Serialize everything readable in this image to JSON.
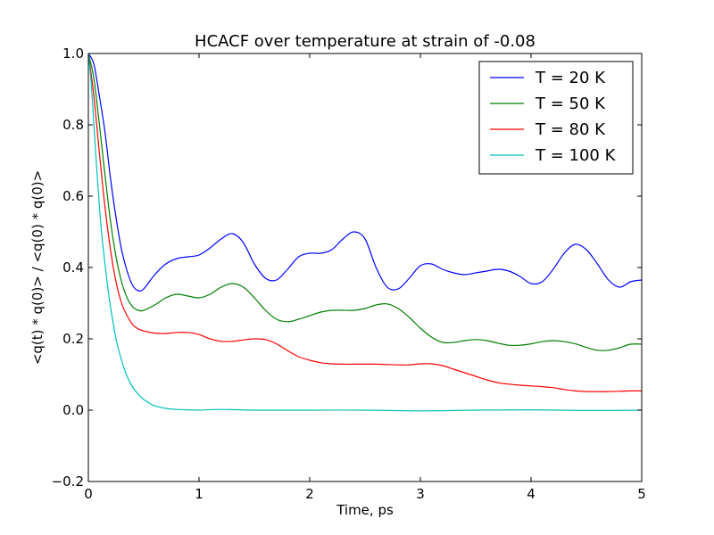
{
  "chart_data": {
    "type": "line",
    "title": "HCACF over temperature at strain of -0.08",
    "xlabel": "Time, ps",
    "ylabel": "<q(t) * q(0)> / <q(0) * q(0)>",
    "xlim": [
      0,
      5
    ],
    "ylim": [
      -0.2,
      1.0
    ],
    "xticks": [
      0,
      1,
      2,
      3,
      4,
      5
    ],
    "xtick_labels": [
      "0",
      "1",
      "2",
      "3",
      "4",
      "5"
    ],
    "yticks": [
      -0.2,
      0.0,
      0.2,
      0.4,
      0.6,
      0.8,
      1.0
    ],
    "ytick_labels": [
      "−0.2",
      "0.0",
      "0.2",
      "0.4",
      "0.6",
      "0.8",
      "1.0"
    ],
    "grid": false,
    "legend_position": "top-right",
    "series": [
      {
        "name": "T = 20 K",
        "color": "#0000ff",
        "x": [
          0,
          0.05,
          0.1,
          0.15,
          0.2,
          0.25,
          0.3,
          0.35,
          0.4,
          0.45,
          0.5,
          0.6,
          0.7,
          0.8,
          0.9,
          1.0,
          1.1,
          1.2,
          1.3,
          1.4,
          1.5,
          1.6,
          1.7,
          1.8,
          1.9,
          2.0,
          2.1,
          2.2,
          2.3,
          2.4,
          2.5,
          2.6,
          2.7,
          2.8,
          2.9,
          3.0,
          3.1,
          3.2,
          3.3,
          3.4,
          3.5,
          3.6,
          3.7,
          3.8,
          3.9,
          4.0,
          4.1,
          4.2,
          4.3,
          4.4,
          4.5,
          4.6,
          4.7,
          4.8,
          4.9,
          5.0
        ],
        "y": [
          1.0,
          0.97,
          0.88,
          0.78,
          0.65,
          0.54,
          0.45,
          0.39,
          0.35,
          0.335,
          0.34,
          0.38,
          0.41,
          0.425,
          0.43,
          0.435,
          0.455,
          0.48,
          0.495,
          0.47,
          0.41,
          0.37,
          0.365,
          0.395,
          0.43,
          0.44,
          0.44,
          0.45,
          0.48,
          0.5,
          0.48,
          0.4,
          0.345,
          0.34,
          0.37,
          0.405,
          0.41,
          0.395,
          0.385,
          0.38,
          0.385,
          0.39,
          0.395,
          0.39,
          0.375,
          0.355,
          0.36,
          0.395,
          0.44,
          0.465,
          0.45,
          0.41,
          0.365,
          0.345,
          0.36,
          0.365
        ]
      },
      {
        "name": "T = 50 K",
        "color": "#008000",
        "x": [
          0,
          0.05,
          0.1,
          0.15,
          0.2,
          0.25,
          0.3,
          0.35,
          0.4,
          0.45,
          0.5,
          0.6,
          0.7,
          0.8,
          0.9,
          1.0,
          1.1,
          1.2,
          1.3,
          1.4,
          1.5,
          1.6,
          1.7,
          1.8,
          1.9,
          2.0,
          2.1,
          2.2,
          2.3,
          2.4,
          2.5,
          2.6,
          2.7,
          2.8,
          2.9,
          3.0,
          3.1,
          3.2,
          3.3,
          3.4,
          3.5,
          3.6,
          3.7,
          3.8,
          3.9,
          4.0,
          4.1,
          4.2,
          4.3,
          4.4,
          4.5,
          4.6,
          4.7,
          4.8,
          4.9,
          5.0
        ],
        "y": [
          1.0,
          0.93,
          0.8,
          0.66,
          0.53,
          0.43,
          0.36,
          0.315,
          0.29,
          0.28,
          0.28,
          0.295,
          0.315,
          0.325,
          0.32,
          0.315,
          0.325,
          0.345,
          0.355,
          0.345,
          0.315,
          0.28,
          0.255,
          0.248,
          0.255,
          0.265,
          0.275,
          0.28,
          0.28,
          0.28,
          0.285,
          0.295,
          0.298,
          0.285,
          0.26,
          0.23,
          0.205,
          0.19,
          0.19,
          0.195,
          0.198,
          0.195,
          0.188,
          0.182,
          0.182,
          0.186,
          0.192,
          0.195,
          0.192,
          0.186,
          0.176,
          0.168,
          0.168,
          0.175,
          0.185,
          0.185
        ]
      },
      {
        "name": "T = 80 K",
        "color": "#ff0000",
        "x": [
          0,
          0.05,
          0.1,
          0.15,
          0.2,
          0.25,
          0.3,
          0.35,
          0.4,
          0.45,
          0.5,
          0.6,
          0.7,
          0.8,
          0.9,
          1.0,
          1.1,
          1.2,
          1.3,
          1.4,
          1.5,
          1.6,
          1.7,
          1.8,
          1.9,
          2.0,
          2.1,
          2.2,
          2.3,
          2.4,
          2.5,
          2.6,
          2.7,
          2.8,
          2.9,
          3.0,
          3.1,
          3.2,
          3.3,
          3.4,
          3.5,
          3.6,
          3.7,
          3.8,
          3.9,
          4.0,
          4.1,
          4.2,
          4.3,
          4.4,
          4.5,
          4.6,
          4.7,
          4.8,
          4.9,
          5.0
        ],
        "y": [
          1.0,
          0.88,
          0.72,
          0.57,
          0.45,
          0.36,
          0.3,
          0.265,
          0.24,
          0.228,
          0.222,
          0.216,
          0.215,
          0.218,
          0.218,
          0.212,
          0.2,
          0.193,
          0.193,
          0.197,
          0.2,
          0.198,
          0.186,
          0.167,
          0.15,
          0.14,
          0.133,
          0.13,
          0.129,
          0.129,
          0.129,
          0.129,
          0.128,
          0.127,
          0.127,
          0.13,
          0.13,
          0.125,
          0.115,
          0.105,
          0.095,
          0.085,
          0.077,
          0.073,
          0.07,
          0.068,
          0.066,
          0.063,
          0.058,
          0.054,
          0.052,
          0.052,
          0.052,
          0.053,
          0.054,
          0.054
        ]
      },
      {
        "name": "T = 100 K",
        "color": "#00bfbf",
        "x": [
          0,
          0.025,
          0.05,
          0.075,
          0.1,
          0.125,
          0.15,
          0.175,
          0.2,
          0.25,
          0.3,
          0.35,
          0.4,
          0.45,
          0.5,
          0.55,
          0.6,
          0.7,
          0.8,
          0.9,
          1.0,
          1.2,
          1.5,
          2.0,
          2.5,
          3.0,
          3.5,
          4.0,
          4.5,
          5.0
        ],
        "y": [
          1.0,
          0.92,
          0.8,
          0.68,
          0.57,
          0.48,
          0.41,
          0.345,
          0.29,
          0.2,
          0.14,
          0.095,
          0.065,
          0.045,
          0.03,
          0.02,
          0.012,
          0.005,
          0.002,
          0.001,
          0.0,
          0.002,
          0.0,
          0.0,
          0.0,
          -0.002,
          0.0,
          0.001,
          -0.001,
          0.0
        ]
      }
    ]
  }
}
